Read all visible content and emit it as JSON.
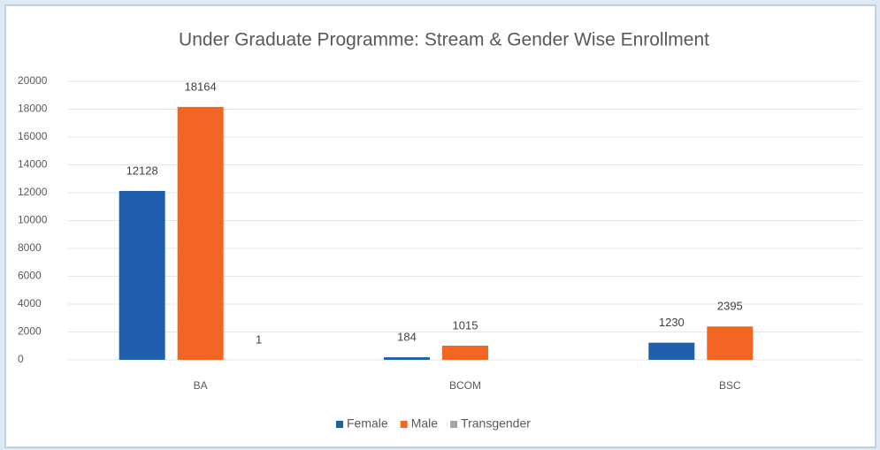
{
  "chart_data": {
    "type": "bar",
    "title": "Under Graduate Programme: Stream & Gender Wise Enrollment",
    "categories": [
      "BA",
      "BCOM",
      "BSC"
    ],
    "series": [
      {
        "name": "Female",
        "color": "#1f5fae",
        "values": [
          12128,
          184,
          1230
        ]
      },
      {
        "name": "Male",
        "color": "#f26522",
        "values": [
          18164,
          1015,
          2395
        ]
      },
      {
        "name": "Transgender",
        "color": "#a5a5a5",
        "values": [
          1,
          null,
          null
        ]
      }
    ],
    "ylim": [
      0,
      20000
    ],
    "yticks": [
      0,
      2000,
      4000,
      6000,
      8000,
      10000,
      12000,
      14000,
      16000,
      18000,
      20000
    ],
    "grid": true,
    "legend": "bottom"
  }
}
